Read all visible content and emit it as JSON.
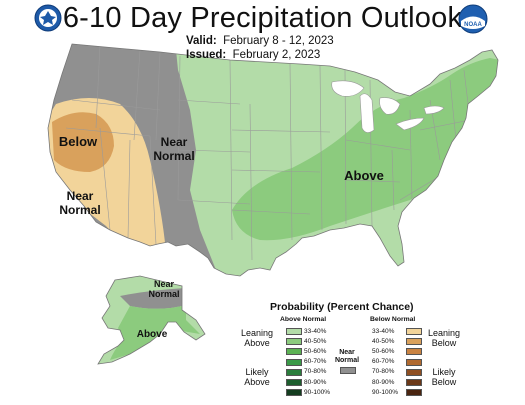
{
  "title": "6-10 Day Precipitation Outlook",
  "valid_label": "Valid:",
  "valid_value": "February 8 - 12, 2023",
  "issued_label": "Issued:",
  "issued_value": "February 2, 2023",
  "logos": {
    "left": "doc-seal-icon",
    "right": "noaa-logo-icon",
    "noaa_text": "NOAA"
  },
  "map_labels": {
    "below": "Below",
    "near_normal_west_1": "Near",
    "near_normal_west_2": "Normal",
    "near_normal_sw_1": "Near",
    "near_normal_sw_2": "Normal",
    "above_east": "Above",
    "near_normal_ak_1": "Near",
    "near_normal_ak_2": "Normal",
    "above_ak": "Above"
  },
  "colors": {
    "above_33_40": "#b3dca8",
    "above_40_50": "#8ccb7e",
    "near_normal": "#909090",
    "below_33_40": "#f2d49a",
    "below_40_50": "#d9a15c",
    "boundary": "#aaaaaa"
  },
  "legend": {
    "title": "Probability (Percent Chance)",
    "above_header": "Above Normal",
    "below_header": "Below Normal",
    "leaning_above": [
      "Leaning",
      "Above"
    ],
    "likely_above": [
      "Likely",
      "Above"
    ],
    "leaning_below": [
      "Leaning",
      "Below"
    ],
    "likely_below": [
      "Likely",
      "Below"
    ],
    "near_normal": [
      "Near",
      "Normal"
    ],
    "ranges": [
      "33-40%",
      "40-50%",
      "50-60%",
      "60-70%",
      "70-80%",
      "80-90%",
      "90-100%"
    ],
    "above_colors": [
      "#b3dca8",
      "#8ccb7e",
      "#5cb254",
      "#3b9a48",
      "#2a7d3c",
      "#1d5e2e",
      "#143d1f"
    ],
    "below_colors": [
      "#f2d49a",
      "#d9a15c",
      "#c98342",
      "#b06a30",
      "#8e4f22",
      "#6a3818",
      "#4a2510"
    ],
    "near_color": "#909090"
  }
}
